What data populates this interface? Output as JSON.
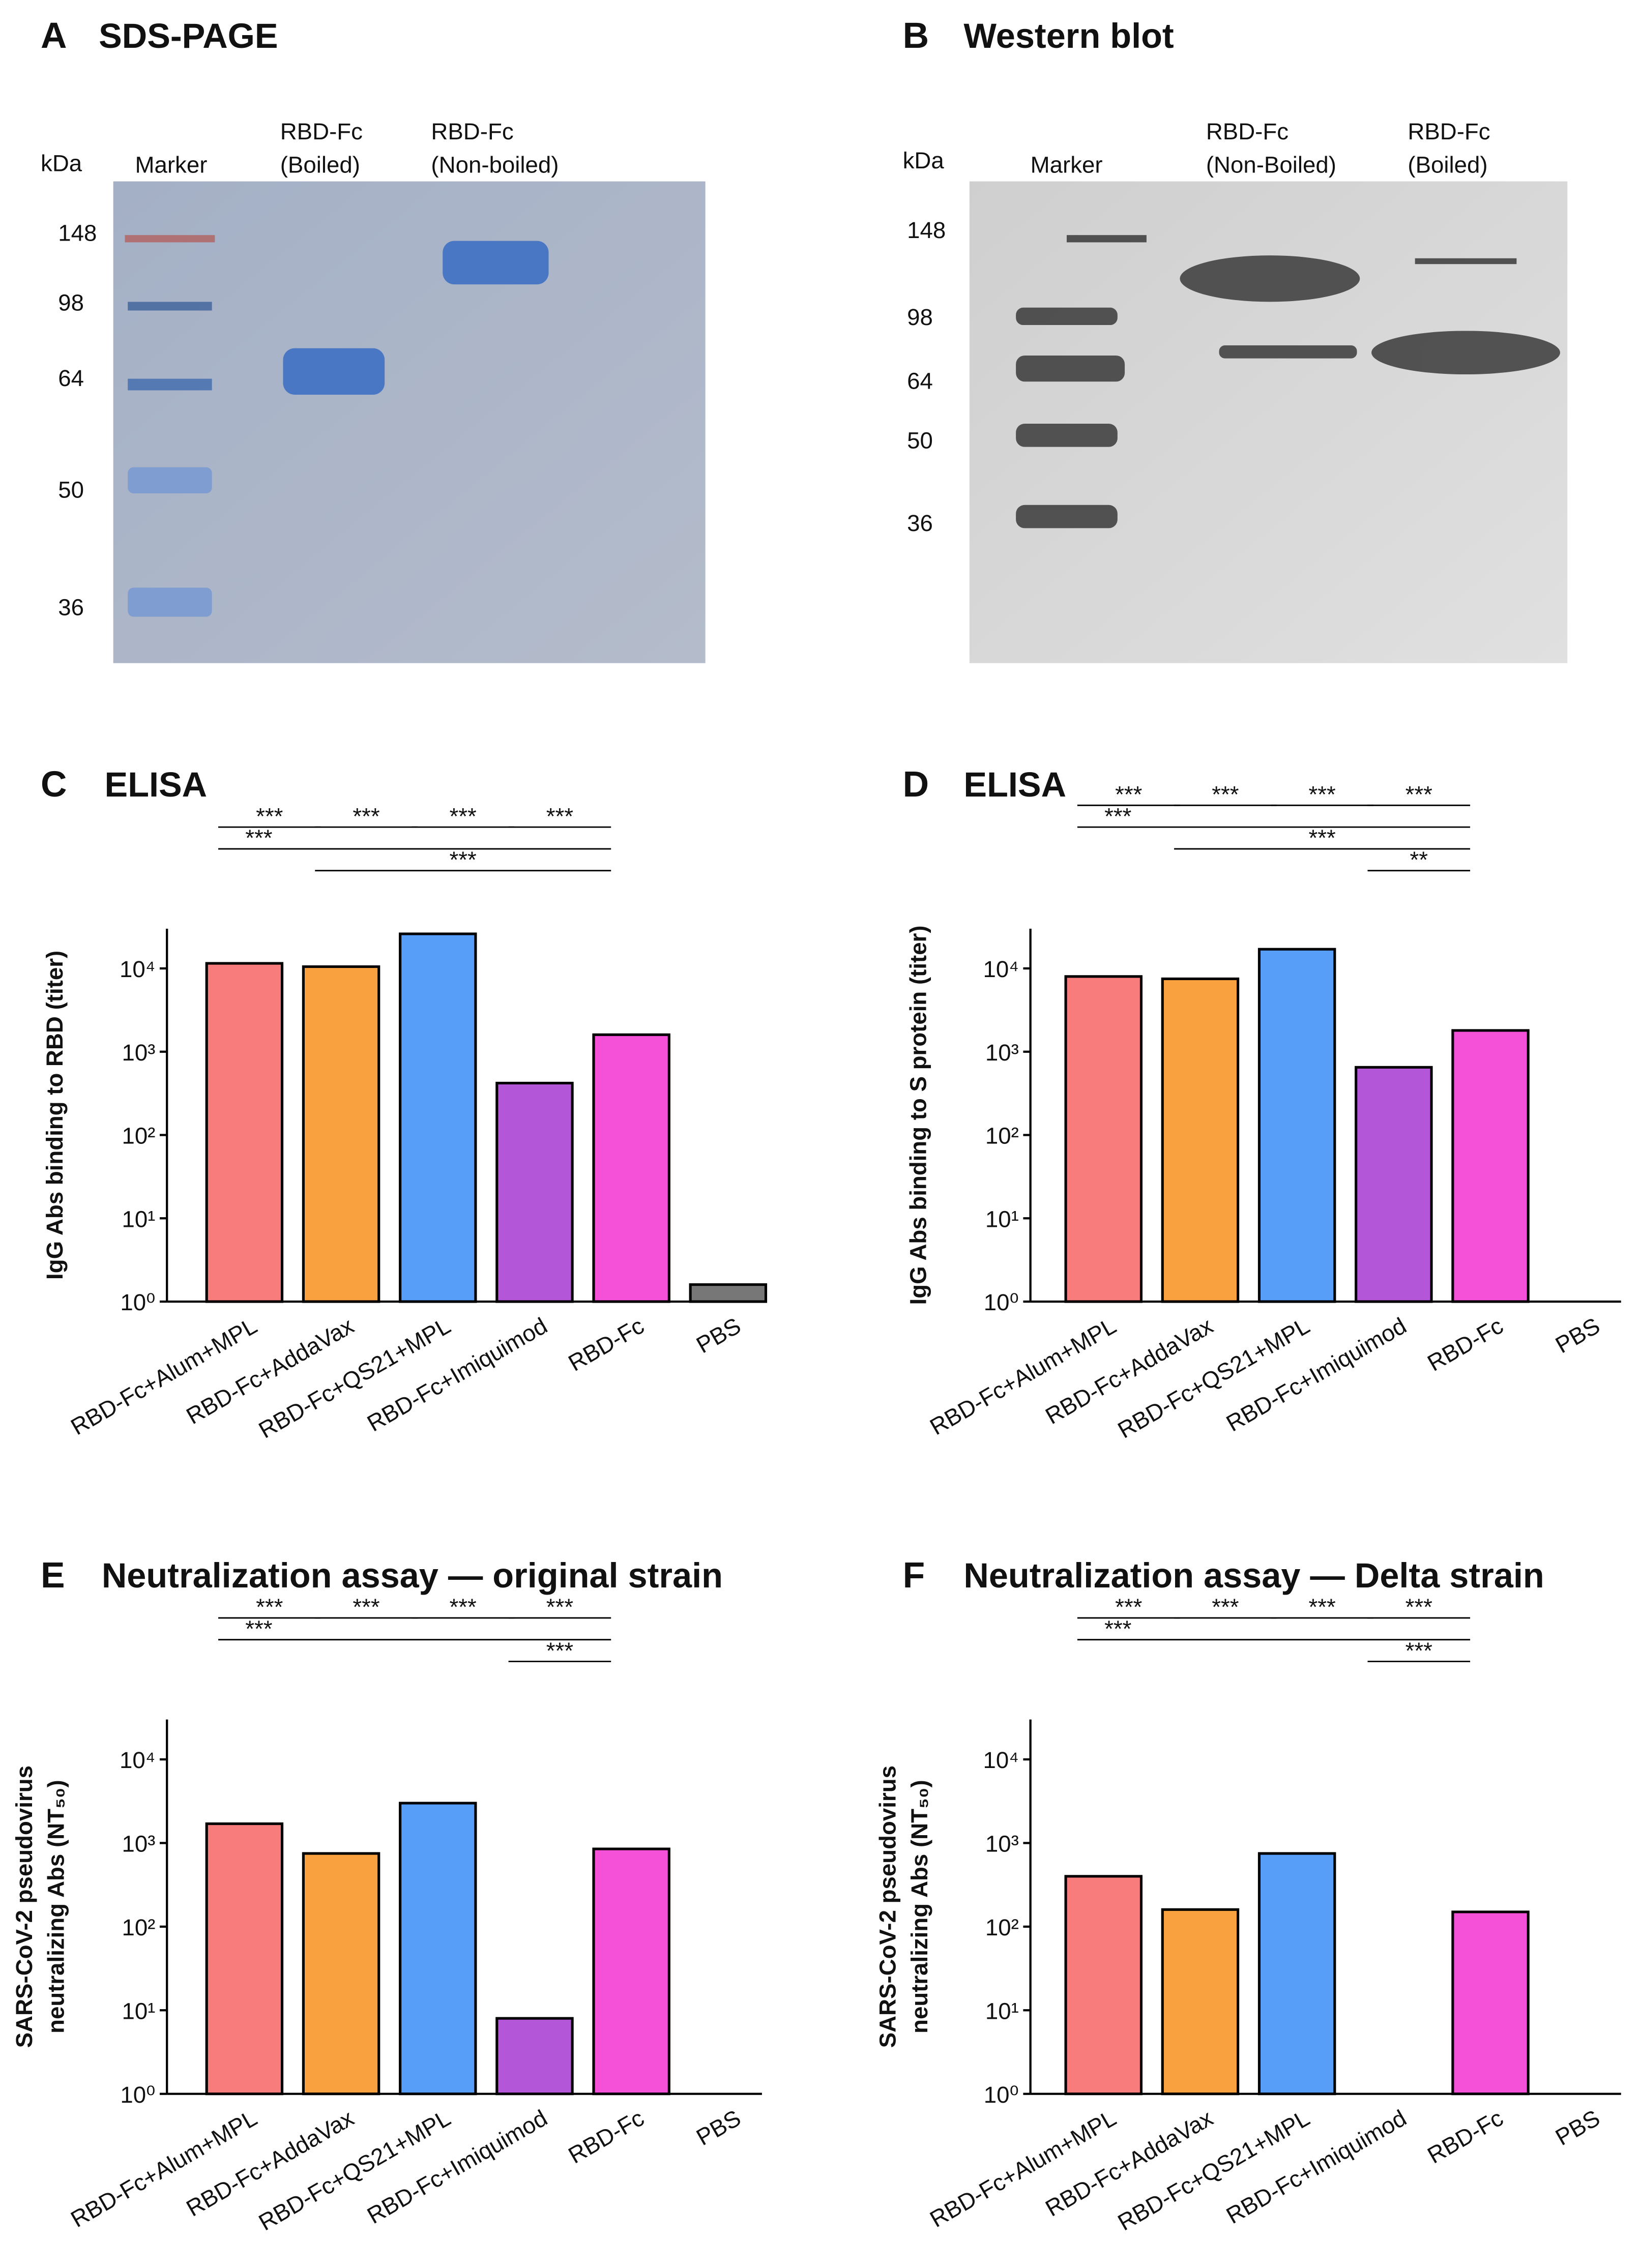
{
  "gels": [
    {
      "panel": "A",
      "title": "SDS-PAGE",
      "unit": "kDa",
      "lanes": [
        [
          "Marker"
        ],
        [
          "RBD-Fc",
          "(Boiled)"
        ],
        [
          "RBD-Fc",
          "(Non-boiled)"
        ]
      ],
      "markers": [
        148,
        98,
        64,
        50,
        36
      ]
    },
    {
      "panel": "B",
      "title": "Western blot",
      "unit": "kDa",
      "lanes": [
        [
          "Marker"
        ],
        [
          "RBD-Fc",
          "(Non-Boiled)"
        ],
        [
          "RBD-Fc",
          "(Boiled)"
        ]
      ],
      "markers": [
        148,
        98,
        64,
        50,
        36
      ]
    }
  ],
  "chart_data": [
    {
      "type": "bar",
      "panel": "C",
      "title": "ELISA",
      "ylabel": [
        "IgG Abs binding to RBD (titer)"
      ],
      "log_scale": true,
      "categories": [
        "RBD-Fc+Alum+MPL",
        "RBD-Fc+AddaVax",
        "RBD-Fc+QS21+MPL",
        "RBD-Fc+Imiquimod",
        "RBD-Fc",
        "PBS"
      ],
      "values": [
        11500,
        10500,
        26000,
        420,
        1600,
        1.6
      ],
      "colors": [
        "#f87c7c",
        "#f9a03f",
        "#579ef8",
        "#b456d8",
        "#f550d8",
        "#777777"
      ],
      "ylim": [
        1,
        30000
      ],
      "yticks": [
        {
          "value": 1,
          "label": "10⁰"
        },
        {
          "value": 10,
          "label": "10¹"
        },
        {
          "value": 100,
          "label": "10²"
        },
        {
          "value": 1000,
          "label": "10³"
        },
        {
          "value": 10000,
          "label": "10⁴"
        }
      ],
      "brackets": [
        {
          "label": "***",
          "from": 0,
          "to": 1
        },
        {
          "label": "***",
          "from": 1,
          "to": 2
        },
        {
          "label": "***",
          "from": 2,
          "to": 3
        },
        {
          "label": "***",
          "from": 3,
          "to": 4
        },
        {
          "label": "***",
          "from": 0,
          "to": 4
        },
        {
          "label": "***",
          "from": 1,
          "to": 4
        }
      ]
    },
    {
      "type": "bar",
      "panel": "D",
      "title": "ELISA",
      "ylabel": [
        "IgG Abs binding to S protein (titer)"
      ],
      "log_scale": true,
      "categories": [
        "RBD-Fc+Alum+MPL",
        "RBD-Fc+AddaVax",
        "RBD-Fc+QS21+MPL",
        "RBD-Fc+Imiquimod",
        "RBD-Fc",
        "PBS"
      ],
      "values": [
        8000,
        7500,
        17000,
        650,
        1800,
        1
      ],
      "colors": [
        "#f87c7c",
        "#f9a03f",
        "#579ef8",
        "#b456d8",
        "#f550d8",
        "#777777"
      ],
      "ylim": [
        1,
        30000
      ],
      "yticks": [
        {
          "value": 1,
          "label": "10⁰"
        },
        {
          "value": 10,
          "label": "10¹"
        },
        {
          "value": 100,
          "label": "10²"
        },
        {
          "value": 1000,
          "label": "10³"
        },
        {
          "value": 10000,
          "label": "10⁴"
        }
      ],
      "brackets": [
        {
          "label": "***",
          "from": 0,
          "to": 1
        },
        {
          "label": "***",
          "from": 1,
          "to": 2
        },
        {
          "label": "***",
          "from": 2,
          "to": 3
        },
        {
          "label": "***",
          "from": 3,
          "to": 4
        },
        {
          "label": "***",
          "from": 0,
          "to": 4
        },
        {
          "label": "***",
          "from": 1,
          "to": 4
        },
        {
          "label": "**",
          "from": 3,
          "to": 4
        }
      ]
    },
    {
      "type": "bar",
      "panel": "E",
      "title": "Neutralization assay — original strain",
      "ylabel": [
        "SARS-CoV-2 pseudovirus",
        "neutralizing Abs (NT₅₀)"
      ],
      "log_scale": true,
      "categories": [
        "RBD-Fc+Alum+MPL",
        "RBD-Fc+AddaVax",
        "RBD-Fc+QS21+MPL",
        "RBD-Fc+Imiquimod",
        "RBD-Fc",
        "PBS"
      ],
      "values": [
        1700,
        750,
        3000,
        8,
        850,
        null
      ],
      "colors": [
        "#f87c7c",
        "#f9a03f",
        "#579ef8",
        "#b456d8",
        "#f550d8",
        "#777777"
      ],
      "ylim": [
        1,
        30000
      ],
      "yticks": [
        {
          "value": 1,
          "label": "10⁰"
        },
        {
          "value": 10,
          "label": "10¹"
        },
        {
          "value": 100,
          "label": "10²"
        },
        {
          "value": 1000,
          "label": "10³"
        },
        {
          "value": 10000,
          "label": "10⁴"
        }
      ],
      "brackets": [
        {
          "label": "***",
          "from": 0,
          "to": 1
        },
        {
          "label": "***",
          "from": 1,
          "to": 2
        },
        {
          "label": "***",
          "from": 2,
          "to": 3
        },
        {
          "label": "***",
          "from": 3,
          "to": 4
        },
        {
          "label": "***",
          "from": 0,
          "to": 4
        },
        {
          "label": "***",
          "from": 3,
          "to": 4
        }
      ]
    },
    {
      "type": "bar",
      "panel": "F",
      "title": "Neutralization assay — Delta strain",
      "ylabel": [
        "SARS-CoV-2 pseudovirus",
        "neutralizing Abs (NT₅₀)"
      ],
      "log_scale": true,
      "categories": [
        "RBD-Fc+Alum+MPL",
        "RBD-Fc+AddaVax",
        "RBD-Fc+QS21+MPL",
        "RBD-Fc+Imiquimod",
        "RBD-Fc",
        "PBS"
      ],
      "values": [
        400,
        160,
        750,
        null,
        150,
        null
      ],
      "colors": [
        "#f87c7c",
        "#f9a03f",
        "#579ef8",
        "#b456d8",
        "#f550d8",
        "#777777"
      ],
      "ylim": [
        1,
        30000
      ],
      "yticks": [
        {
          "value": 1,
          "label": "10⁰"
        },
        {
          "value": 10,
          "label": "10¹"
        },
        {
          "value": 100,
          "label": "10²"
        },
        {
          "value": 1000,
          "label": "10³"
        },
        {
          "value": 10000,
          "label": "10⁴"
        }
      ],
      "brackets": [
        {
          "label": "***",
          "from": 0,
          "to": 1
        },
        {
          "label": "***",
          "from": 1,
          "to": 2
        },
        {
          "label": "***",
          "from": 2,
          "to": 3
        },
        {
          "label": "***",
          "from": 3,
          "to": 4
        },
        {
          "label": "***",
          "from": 0,
          "to": 4
        },
        {
          "label": "***",
          "from": 3,
          "to": 4
        }
      ]
    }
  ]
}
